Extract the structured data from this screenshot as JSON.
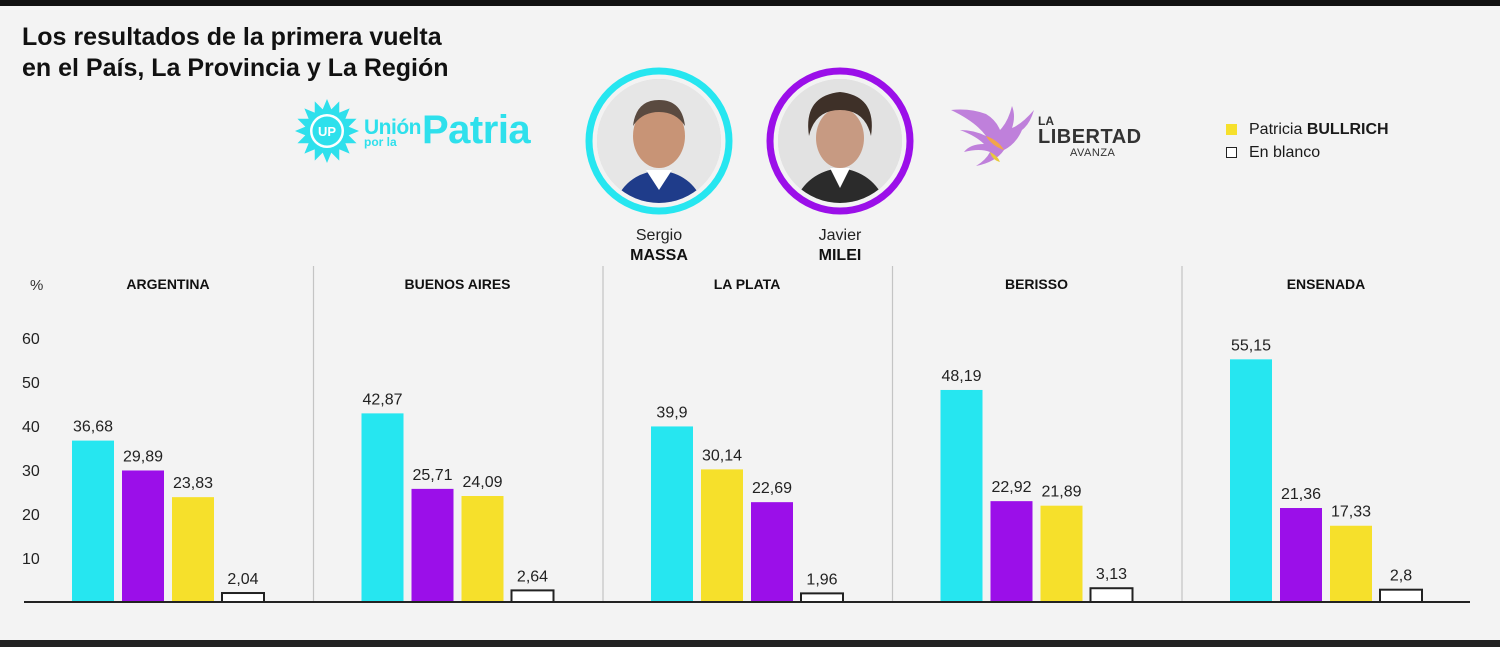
{
  "title": {
    "line1": "Los resultados de la primera vuelta",
    "line2": "en el País, La Provincia y La Región"
  },
  "logos": {
    "union_por_la_patria": {
      "emblem": "UP",
      "union": "Unión",
      "por_la": "por la",
      "patria": "Patria"
    },
    "la_libertad_avanza": {
      "la": "LA",
      "libertad": "LIBERTAD",
      "avanza": "AVANZA"
    }
  },
  "candidates": [
    {
      "first": "Sergio",
      "last": "MASSA",
      "color": "#26e6f0"
    },
    {
      "first": "Javier",
      "last": "MILEI",
      "color": "#9b0fe9"
    }
  ],
  "legend": [
    {
      "first": "Patricia",
      "last": "BULLRICH",
      "color": "#f6e02b"
    },
    {
      "label": "En blanco",
      "color": "#ffffff"
    }
  ],
  "colors": {
    "massa": "#26e6f0",
    "milei": "#9b0fe9",
    "bullrich": "#f6e02b",
    "blanco": "#ffffff"
  },
  "chart_data": {
    "type": "bar",
    "y_unit_label": "%",
    "ylim": [
      0,
      60
    ],
    "yticks": [
      10,
      20,
      30,
      40,
      50,
      60
    ],
    "grid": false,
    "series_names": [
      "Massa",
      "Milei",
      "Bullrich",
      "En blanco"
    ],
    "groups": [
      {
        "name": "ARGENTINA",
        "bars": [
          {
            "series": "Massa",
            "value": 36.68,
            "label": "36,68"
          },
          {
            "series": "Milei",
            "value": 29.89,
            "label": "29,89"
          },
          {
            "series": "Bullrich",
            "value": 23.83,
            "label": "23,83"
          },
          {
            "series": "En blanco",
            "value": 2.04,
            "label": "2,04"
          }
        ]
      },
      {
        "name": "BUENOS AIRES",
        "bars": [
          {
            "series": "Massa",
            "value": 42.87,
            "label": "42,87"
          },
          {
            "series": "Milei",
            "value": 25.71,
            "label": "25,71"
          },
          {
            "series": "Bullrich",
            "value": 24.09,
            "label": "24,09"
          },
          {
            "series": "En blanco",
            "value": 2.64,
            "label": "2,64"
          }
        ]
      },
      {
        "name": "LA PLATA",
        "bars": [
          {
            "series": "Massa",
            "value": 39.9,
            "label": "39,9"
          },
          {
            "series": "Bullrich",
            "value": 30.14,
            "label": "30,14"
          },
          {
            "series": "Milei",
            "value": 22.69,
            "label": "22,69"
          },
          {
            "series": "En blanco",
            "value": 1.96,
            "label": "1,96"
          }
        ]
      },
      {
        "name": "BERISSO",
        "bars": [
          {
            "series": "Massa",
            "value": 48.19,
            "label": "48,19"
          },
          {
            "series": "Milei",
            "value": 22.92,
            "label": "22,92"
          },
          {
            "series": "Bullrich",
            "value": 21.89,
            "label": "21,89"
          },
          {
            "series": "En blanco",
            "value": 3.13,
            "label": "3,13"
          }
        ]
      },
      {
        "name": "ENSENADA",
        "bars": [
          {
            "series": "Massa",
            "value": 55.15,
            "label": "55,15"
          },
          {
            "series": "Milei",
            "value": 21.36,
            "label": "21,36"
          },
          {
            "series": "Bullrich",
            "value": 17.33,
            "label": "17,33"
          },
          {
            "series": "En blanco",
            "value": 2.8,
            "label": "2,8"
          }
        ]
      }
    ]
  }
}
